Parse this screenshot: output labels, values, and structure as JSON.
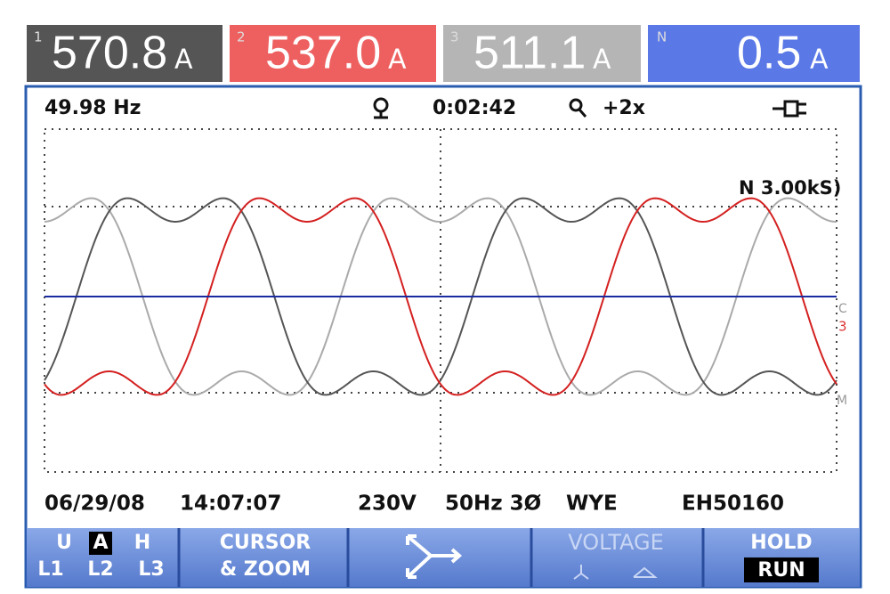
{
  "readings": [
    {
      "index": "1",
      "value": "570.8",
      "unit": "A"
    },
    {
      "index": "2",
      "value": "537.0",
      "unit": "A"
    },
    {
      "index": "3",
      "value": "511.1",
      "unit": "A"
    },
    {
      "index": "N",
      "value": "0.5",
      "unit": "A"
    }
  ],
  "status": {
    "frequency": "49.98 Hz",
    "elapsed": "0:02:42",
    "zoom": "+2x"
  },
  "trace_labels": {
    "scale": "N 3.00kS)",
    "markers": [
      "C",
      "3",
      "M"
    ]
  },
  "footer": {
    "date": "06/29/08",
    "time": "14:07:07",
    "voltage": "230V",
    "frequency": "50Hz 3Ø",
    "config": "WYE",
    "id": "EH50160"
  },
  "softkeys": {
    "mode": {
      "top": [
        "U",
        "A",
        "H"
      ],
      "bottom": [
        "L1",
        "L2",
        "L3"
      ]
    },
    "cursor": [
      "CURSOR",
      "& ZOOM"
    ],
    "voltage": "VOLTAGE",
    "hold": "HOLD",
    "run": "RUN"
  }
}
